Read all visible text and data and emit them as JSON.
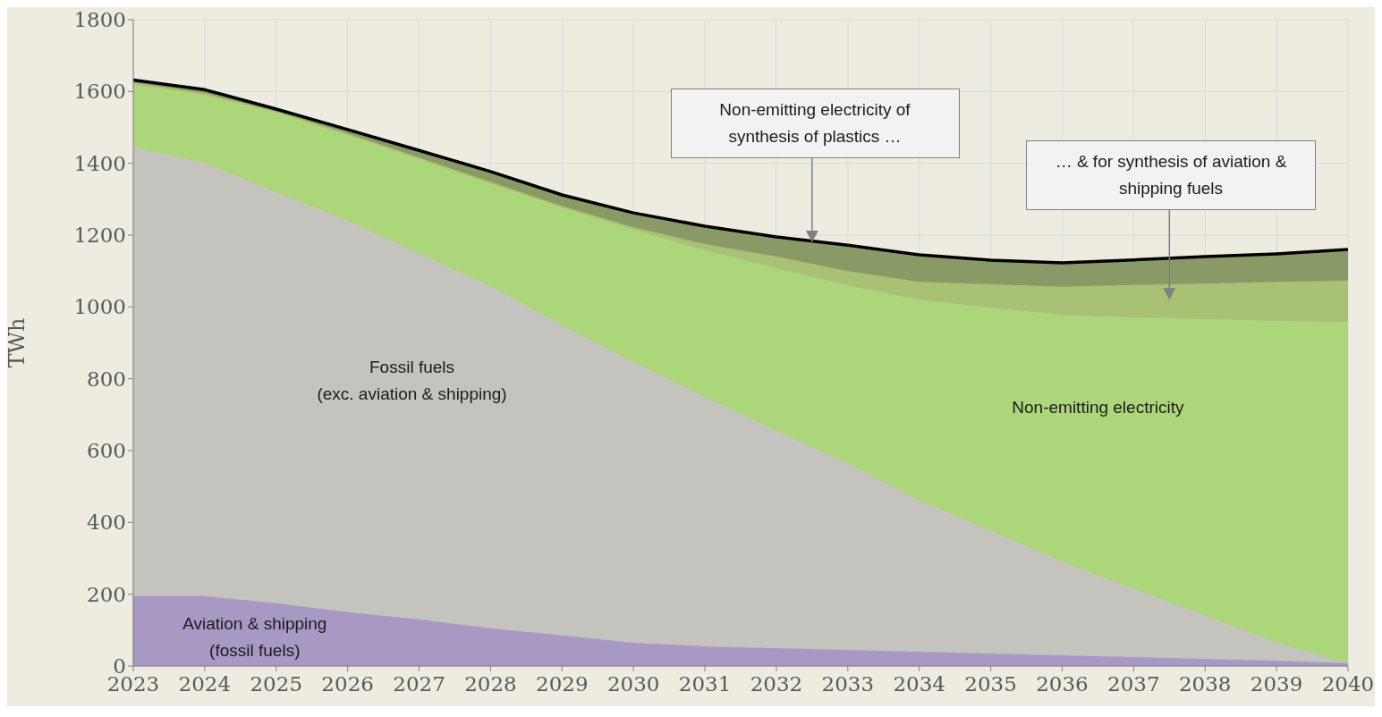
{
  "chart_data": {
    "type": "area",
    "stacked": true,
    "ylabel": "TWh",
    "x": [
      2023,
      2024,
      2025,
      2026,
      2027,
      2028,
      2029,
      2030,
      2031,
      2032,
      2033,
      2034,
      2035,
      2036,
      2037,
      2038,
      2039,
      2040
    ],
    "xlim": [
      2023,
      2040
    ],
    "xticks": [
      2023,
      2024,
      2025,
      2026,
      2027,
      2028,
      2029,
      2030,
      2031,
      2032,
      2033,
      2034,
      2035,
      2036,
      2037,
      2038,
      2039,
      2040
    ],
    "ylim": [
      0,
      1800
    ],
    "yticks": [
      0,
      200,
      400,
      600,
      800,
      1000,
      1200,
      1400,
      1600,
      1800
    ],
    "grid": true,
    "legend": false,
    "series": [
      {
        "name": "Aviation & shipping\n(fossil fuels)",
        "color": "#a898c4",
        "values": [
          195,
          195,
          175,
          150,
          130,
          105,
          85,
          65,
          55,
          50,
          45,
          40,
          35,
          30,
          25,
          20,
          15,
          8
        ]
      },
      {
        "name": "Fossil fuels\n(exc. aviation & shipping)",
        "color": "#c4c3be",
        "values": [
          1250,
          1205,
          1144,
          1090,
          1018,
          953,
          863,
          781,
          694,
          605,
          518,
          421,
          341,
          260,
          190,
          120,
          50,
          0
        ]
      },
      {
        "name": "Non-emitting electricity",
        "color": "#acd67a",
        "values": [
          175,
          190,
          222,
          239,
          264,
          286,
          329,
          369,
          409,
          453,
          497,
          559,
          622,
          688,
          756,
          826,
          896,
          949
        ]
      },
      {
        "color": "#a9c175",
        "values": [
          5,
          5,
          4,
          4,
          4,
          4,
          4,
          7,
          17,
          32,
          40,
          50,
          65,
          78,
          90,
          99,
          109,
          116
        ]
      },
      {
        "color": "#8a9a66",
        "values": [
          7,
          10,
          6,
          11,
          20,
          29,
          31,
          40,
          50,
          55,
          72,
          75,
          67,
          67,
          70,
          75,
          78,
          87
        ]
      }
    ],
    "annotations": [
      "Non-emitting electricity of synthesis of plastics …",
      "… & for synthesis of aviation & shipping fuels"
    ]
  }
}
